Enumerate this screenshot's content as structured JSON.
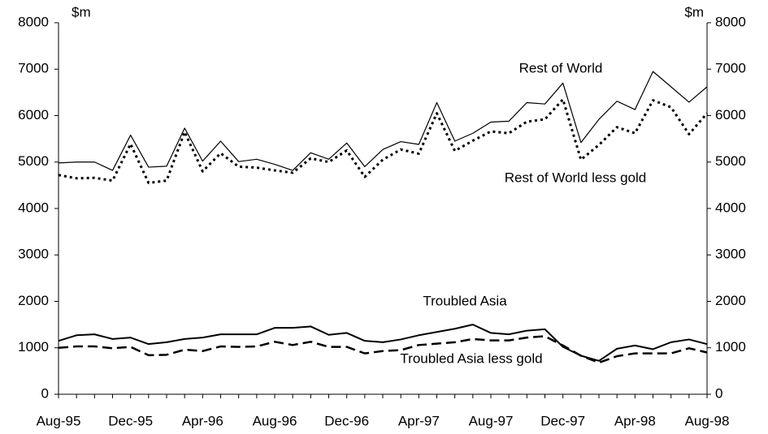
{
  "chart_data": {
    "type": "line",
    "ylabel": "$m",
    "y2label": "$m",
    "categories": [
      "Aug-95",
      null,
      null,
      null,
      "Dec-95",
      null,
      null,
      null,
      "Apr-96",
      null,
      null,
      null,
      "Aug-96",
      null,
      null,
      null,
      "Dec-96",
      null,
      null,
      null,
      "Apr-97",
      null,
      null,
      null,
      "Aug-97",
      null,
      null,
      null,
      "Dec-97",
      null,
      null,
      null,
      "Apr-98",
      null,
      null,
      null,
      "Aug-98"
    ],
    "series": [
      {
        "name": "Rest of World",
        "color": "#000000",
        "style": "thin",
        "values": [
          4980,
          5000,
          5000,
          4820,
          5580,
          4890,
          4910,
          5730,
          5020,
          5450,
          5010,
          5060,
          4950,
          4820,
          5200,
          5060,
          5410,
          4900,
          5270,
          5440,
          5380,
          6280,
          5450,
          5620,
          5860,
          5880,
          6280,
          6250,
          6700,
          5420,
          5920,
          6310,
          6130,
          6950,
          6620,
          6290,
          6620
        ]
      },
      {
        "name": "Rest of World less gold",
        "color": "#000000",
        "style": "dotted",
        "values": [
          4720,
          4650,
          4660,
          4600,
          5390,
          4550,
          4600,
          5650,
          4800,
          5190,
          4900,
          4880,
          4820,
          4770,
          5080,
          5000,
          5250,
          4680,
          5050,
          5270,
          5180,
          6050,
          5240,
          5460,
          5660,
          5620,
          5870,
          5920,
          6350,
          5050,
          5370,
          5750,
          5620,
          6330,
          6180,
          5600,
          6050
        ]
      },
      {
        "name": "Troubled Asia",
        "color": "#000000",
        "style": "solid",
        "values": [
          1150,
          1270,
          1290,
          1190,
          1220,
          1080,
          1120,
          1190,
          1220,
          1290,
          1290,
          1290,
          1430,
          1430,
          1460,
          1280,
          1320,
          1150,
          1120,
          1180,
          1270,
          1340,
          1410,
          1500,
          1320,
          1290,
          1370,
          1400,
          1020,
          830,
          720,
          980,
          1050,
          970,
          1120,
          1180,
          1080
        ]
      },
      {
        "name": "Troubled Asia less gold",
        "color": "#000000",
        "style": "dashed",
        "values": [
          1000,
          1030,
          1030,
          990,
          1020,
          840,
          850,
          960,
          930,
          1030,
          1020,
          1030,
          1130,
          1060,
          1130,
          1020,
          1020,
          880,
          930,
          950,
          1060,
          1090,
          1120,
          1190,
          1160,
          1160,
          1220,
          1250,
          1050,
          830,
          680,
          820,
          880,
          880,
          880,
          990,
          900
        ]
      }
    ],
    "ylim": [
      0,
      8000
    ],
    "yticks": [
      0,
      1000,
      2000,
      3000,
      4000,
      5000,
      6000,
      7000,
      8000
    ],
    "y2lim": [
      0,
      8000
    ],
    "y2ticks": [
      0,
      1000,
      2000,
      3000,
      4000,
      5000,
      6000,
      7000,
      8000
    ],
    "grid": false,
    "legend": "none"
  }
}
